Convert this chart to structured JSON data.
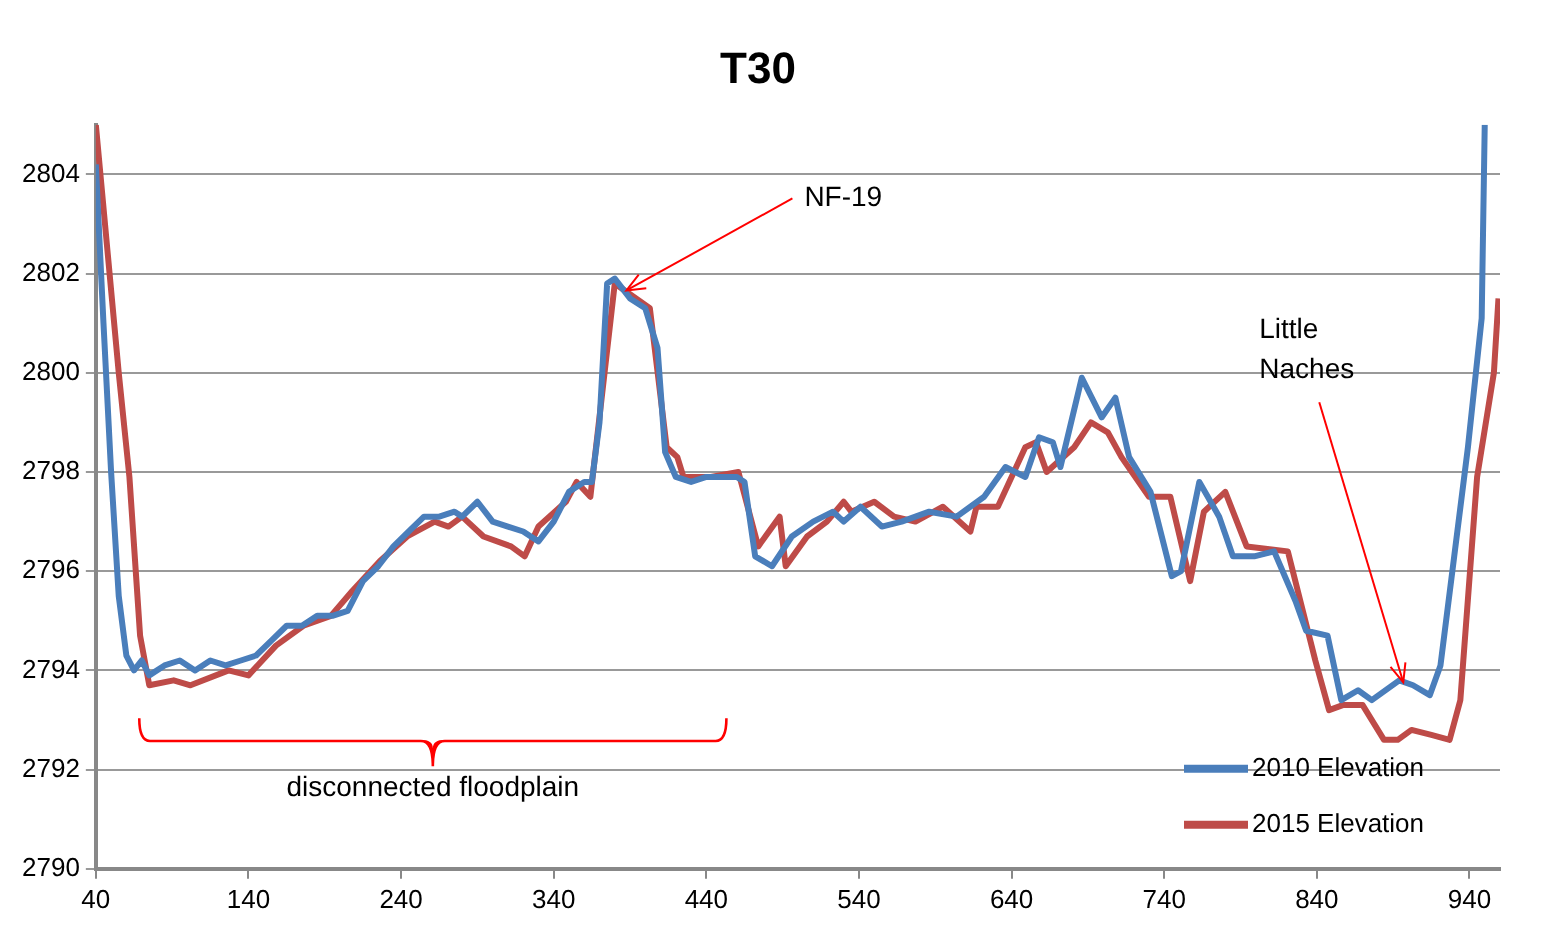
{
  "chart_data": {
    "type": "line",
    "title": "T30",
    "xlim": [
      40,
      960
    ],
    "ylim": [
      2790,
      2805
    ],
    "xticks": [
      40,
      140,
      240,
      340,
      440,
      540,
      640,
      740,
      840,
      940
    ],
    "yticks": [
      2790,
      2792,
      2794,
      2796,
      2798,
      2800,
      2802,
      2804
    ],
    "grid": "y",
    "legend": "bottom right",
    "marker": "none",
    "line_style": "solid",
    "annotations": [
      {
        "text": "NF-19",
        "x": 385,
        "y": 2801.7
      },
      {
        "text": "Little Naches",
        "x": 894,
        "y": 2793.8
      },
      "disconnected floodplain"
    ],
    "series": [
      {
        "name": "2010 Elevation",
        "color": "#4a7ebb",
        "x": [
          40,
          45,
          50,
          55,
          60,
          65,
          70,
          75,
          85,
          95,
          105,
          115,
          125,
          135,
          145,
          155,
          165,
          175,
          185,
          195,
          205,
          215,
          225,
          235,
          245,
          255,
          265,
          275,
          280,
          290,
          300,
          310,
          320,
          330,
          340,
          350,
          360,
          365,
          370,
          375,
          380,
          390,
          400,
          408,
          413,
          420,
          430,
          440,
          450,
          460,
          465,
          472,
          483,
          496,
          510,
          523,
          530,
          541,
          555,
          568,
          586,
          604,
          622,
          636,
          649,
          658,
          667,
          672,
          686,
          699,
          708,
          717,
          731,
          745,
          751,
          763,
          776,
          785,
          799,
          812,
          826,
          833,
          847,
          856,
          867,
          876,
          894,
          903,
          914,
          921,
          930,
          939,
          948,
          950
        ],
        "values": [
          2804.2,
          2801,
          2798,
          2795.5,
          2794.3,
          2794.0,
          2794.2,
          2793.9,
          2794.1,
          2794.2,
          2794.0,
          2794.2,
          2794.1,
          2794.2,
          2794.3,
          2794.6,
          2794.9,
          2794.9,
          2795.1,
          2795.1,
          2795.2,
          2795.8,
          2796.1,
          2796.5,
          2796.8,
          2797.1,
          2797.1,
          2797.2,
          2797.1,
          2797.4,
          2797.0,
          2796.9,
          2796.8,
          2796.6,
          2797.0,
          2797.6,
          2797.8,
          2797.8,
          2799,
          2801.8,
          2801.9,
          2801.5,
          2801.3,
          2800.5,
          2798.4,
          2797.9,
          2797.8,
          2797.9,
          2797.9,
          2797.9,
          2797.8,
          2796.3,
          2796.1,
          2796.7,
          2797.0,
          2797.2,
          2797.0,
          2797.3,
          2796.9,
          2797.0,
          2797.2,
          2797.1,
          2797.5,
          2798.1,
          2797.9,
          2798.7,
          2798.6,
          2798.1,
          2799.9,
          2799.1,
          2799.5,
          2798.3,
          2797.6,
          2795.9,
          2796.0,
          2797.8,
          2797.1,
          2796.3,
          2796.3,
          2796.4,
          2795.4,
          2794.8,
          2794.7,
          2793.4,
          2793.6,
          2793.4,
          2793.8,
          2793.7,
          2793.5,
          2794.1,
          2796.3,
          2798.5,
          2801.1,
          2805
        ]
      },
      {
        "name": "2015 Elevation",
        "color": "#be4b48",
        "x": [
          40,
          55,
          62,
          69,
          75,
          91,
          102,
          127,
          140,
          158,
          176,
          194,
          208,
          226,
          244,
          262,
          271,
          280,
          294,
          312,
          321,
          330,
          348,
          355,
          364,
          380,
          403,
          414,
          421,
          425,
          443,
          461,
          474,
          488,
          492,
          506,
          519,
          530,
          535,
          550,
          563,
          577,
          595,
          613,
          617,
          631,
          649,
          656,
          663,
          681,
          692,
          703,
          712,
          730,
          744,
          757,
          766,
          780,
          794,
          821,
          839,
          848,
          857,
          870,
          884,
          893,
          902,
          915,
          927,
          934,
          945,
          956,
          959
        ],
        "values": [
          2805,
          2800.0,
          2797.9,
          2794.7,
          2793.7,
          2793.8,
          2793.7,
          2794.0,
          2793.9,
          2794.5,
          2794.9,
          2795.1,
          2795.6,
          2796.2,
          2796.7,
          2797.0,
          2796.9,
          2797.1,
          2796.7,
          2796.5,
          2796.3,
          2796.9,
          2797.4,
          2797.8,
          2797.5,
          2801.8,
          2801.3,
          2798.5,
          2798.3,
          2797.9,
          2797.9,
          2798.0,
          2796.5,
          2797.1,
          2796.1,
          2796.7,
          2797.0,
          2797.4,
          2797.2,
          2797.4,
          2797.1,
          2797.0,
          2797.3,
          2796.8,
          2797.3,
          2797.3,
          2798.5,
          2798.6,
          2798.0,
          2798.5,
          2799.0,
          2798.8,
          2798.3,
          2797.5,
          2797.5,
          2795.8,
          2797.2,
          2797.6,
          2796.5,
          2796.4,
          2794.2,
          2793.2,
          2793.3,
          2793.3,
          2792.6,
          2792.6,
          2792.8,
          2792.7,
          2792.6,
          2793.4,
          2797.9,
          2800,
          2801.5
        ]
      }
    ]
  }
}
